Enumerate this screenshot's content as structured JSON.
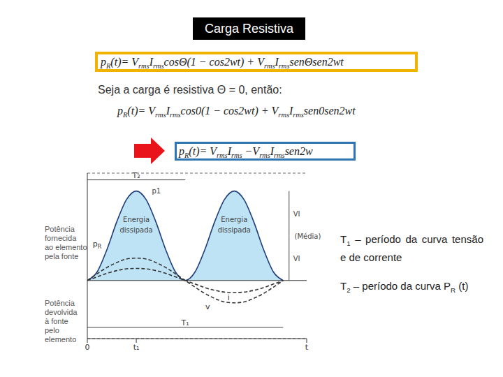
{
  "title": "Carga Resistiva",
  "formulas": [
    [
      "p",
      {
        "sub": "R"
      },
      "(t)= V",
      {
        "sub": "rms"
      },
      "I",
      {
        "sub": "rms"
      },
      "cosΘ(1 − cos2wt) + V",
      {
        "sub": "rms"
      },
      "I",
      {
        "sub": "rms"
      },
      "senΘsen2wt"
    ],
    [
      "p",
      {
        "sub": "R"
      },
      "(t)= V",
      {
        "sub": "rms"
      },
      "I",
      {
        "sub": "rms"
      },
      "cos0(1 − cos2wt) + V",
      {
        "sub": "rms"
      },
      "I",
      {
        "sub": "rms"
      },
      "sen0sen2wt"
    ],
    [
      "p",
      {
        "sub": "R"
      },
      "(t)= V",
      {
        "sub": "rms"
      },
      "I",
      {
        "sub": "rms"
      },
      " −V",
      {
        "sub": "rms"
      },
      "I",
      {
        "sub": "rms"
      },
      "sen2w"
    ]
  ],
  "condition": "Seja a carga é resistiva Θ = 0, então:",
  "notes": [
    [
      "T",
      {
        "sub": "1"
      },
      " – período da curva tensão e de corrente"
    ],
    [
      "T",
      {
        "sub": "2"
      },
      " – período da curva P",
      {
        "sub": "R"
      },
      " (t)"
    ]
  ],
  "axis_side_labels": {
    "up": [
      "Potência",
      "fornecida",
      "ao elemento",
      "pela fonte"
    ],
    "down": [
      "Potência",
      "devolvida",
      "à fonte",
      "pelo",
      "elemento"
    ]
  },
  "chart_data": {
    "type": "line",
    "x": [
      0,
      0.05,
      0.1,
      0.15,
      0.2,
      0.25,
      0.3,
      0.35,
      0.4,
      0.45,
      0.5,
      0.55,
      0.6,
      0.65,
      0.7,
      0.75,
      0.8,
      0.85,
      0.9,
      0.95,
      1.0
    ],
    "series": [
      {
        "name": "pR",
        "type": "area",
        "color": "#1f3d7a",
        "line_style": "solid",
        "values": [
          0,
          0.191,
          0.691,
          1.309,
          1.809,
          2,
          1.809,
          1.309,
          0.691,
          0.191,
          0,
          0.191,
          0.691,
          1.309,
          1.809,
          2,
          1.809,
          1.309,
          0.691,
          0.191,
          0
        ]
      },
      {
        "name": "v",
        "type": "line",
        "color": "#333333",
        "line_style": "dashed",
        "values": [
          0,
          0.15,
          0.29,
          0.4,
          0.48,
          0.5,
          0.48,
          0.4,
          0.29,
          0.15,
          0,
          -0.15,
          -0.29,
          -0.4,
          -0.48,
          -0.5,
          -0.48,
          -0.4,
          -0.29,
          -0.15,
          0
        ]
      },
      {
        "name": "i",
        "type": "line",
        "color": "#333333",
        "line_style": "dashed",
        "values": [
          0,
          0.08,
          0.16,
          0.22,
          0.26,
          0.27,
          0.26,
          0.22,
          0.16,
          0.08,
          0,
          -0.08,
          -0.16,
          -0.22,
          -0.26,
          -0.27,
          -0.26,
          -0.22,
          -0.16,
          -0.08,
          0
        ]
      }
    ],
    "xlim": [
      0,
      1.12
    ],
    "xticks": [
      {
        "value": 0,
        "label": "0"
      },
      {
        "value": 0.25,
        "label": "t₁"
      },
      {
        "value": 1.12,
        "label": "t"
      }
    ],
    "ylim": [
      -1.3,
      2.4
    ],
    "yticks": [
      0,
      1,
      2
    ],
    "tick_labels": "x",
    "grid": true,
    "mean": {
      "value": 1,
      "label": "(Média)"
    },
    "amplitude_labels": [
      "VI",
      "VI"
    ],
    "periods": [
      {
        "label": "T₂",
        "start": 0,
        "end": 0.5
      },
      {
        "label": "T₁",
        "start": 0,
        "end": 1
      }
    ],
    "region_labels": [
      [
        "Energia",
        "dissipada"
      ],
      [
        "Energia",
        "dissipada"
      ]
    ],
    "curve_labels": [
      "p1"
    ]
  }
}
